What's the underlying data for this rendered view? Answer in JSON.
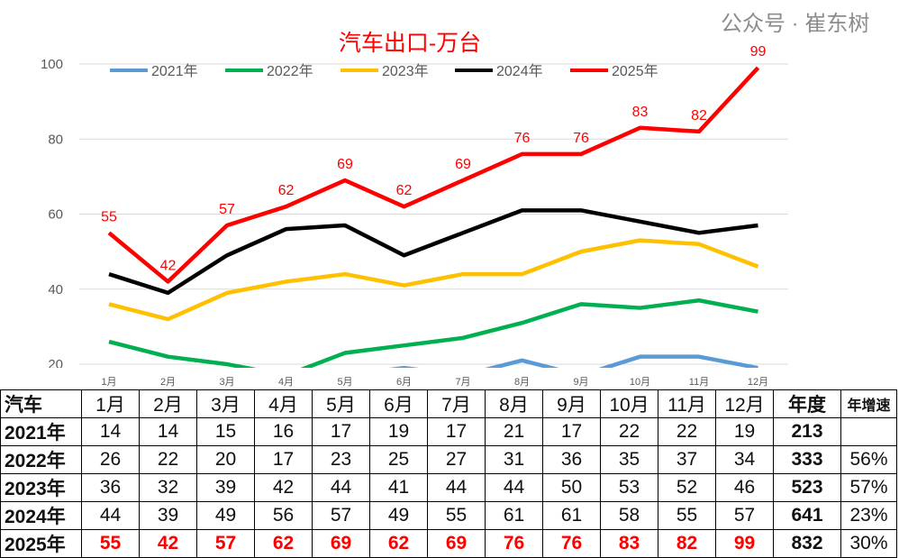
{
  "chart_data": {
    "type": "line",
    "title": "汽车出口-万台",
    "xlabel": "",
    "ylabel": "",
    "categories": [
      "1月",
      "2月",
      "3月",
      "4月",
      "5月",
      "6月",
      "7月",
      "8月",
      "9月",
      "10月",
      "11月",
      "12月"
    ],
    "yticks": [
      20,
      40,
      60,
      80,
      100
    ],
    "ylim": [
      20,
      100
    ],
    "grid": true,
    "legend": "top",
    "series": [
      {
        "name": "2021年",
        "color": "#5b9bd5",
        "values": [
          14,
          14,
          15,
          16,
          17,
          19,
          17,
          21,
          17,
          22,
          22,
          19
        ]
      },
      {
        "name": "2022年",
        "color": "#00b050",
        "values": [
          26,
          22,
          20,
          17,
          23,
          25,
          27,
          31,
          36,
          35,
          37,
          34
        ]
      },
      {
        "name": "2023年",
        "color": "#ffc000",
        "values": [
          36,
          32,
          39,
          42,
          44,
          41,
          44,
          44,
          50,
          53,
          52,
          46
        ]
      },
      {
        "name": "2024年",
        "color": "#000000",
        "values": [
          44,
          39,
          49,
          56,
          57,
          49,
          55,
          61,
          61,
          58,
          55,
          57
        ]
      },
      {
        "name": "2025年",
        "color": "#ff0000",
        "values": [
          55,
          42,
          57,
          62,
          69,
          62,
          69,
          76,
          76,
          83,
          82,
          99
        ],
        "labels": true
      }
    ]
  },
  "table": {
    "corner": "汽车",
    "total_header": "年度",
    "growth_header": "年增速",
    "rows": [
      {
        "year": "2021年",
        "total": "213",
        "growth": ""
      },
      {
        "year": "2022年",
        "total": "333",
        "growth": "56%"
      },
      {
        "year": "2023年",
        "total": "523",
        "growth": "57%"
      },
      {
        "year": "2024年",
        "total": "641",
        "growth": "23%"
      },
      {
        "year": "2025年",
        "total": "832",
        "growth": "30%"
      }
    ]
  },
  "watermark": "公众号 · 崔东树"
}
